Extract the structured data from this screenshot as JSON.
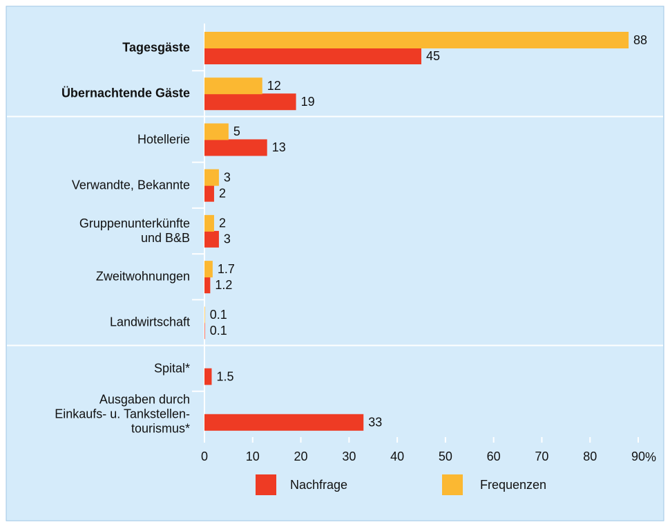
{
  "chart_data": {
    "type": "bar",
    "orientation": "horizontal",
    "categories": [
      "Tagesgäste",
      "Übernachtende Gäste",
      "Hotellerie",
      "Verwandte, Bekannte",
      "Gruppenunterkünfte\nund B&B",
      "Zweitwohnungen",
      "Landwirtschaft",
      "Spital*",
      "Ausgaben durch\nEinkaufs- u. Tankstellen-\ntourismus*"
    ],
    "series": [
      {
        "name": "Nachfrage",
        "color": "#ee3b24",
        "values": [
          45,
          19,
          13,
          2,
          3,
          1.2,
          0.1,
          1.5,
          33
        ]
      },
      {
        "name": "Frequenzen",
        "color": "#fbb832",
        "values": [
          88,
          12,
          5,
          3,
          2,
          1.7,
          0.1,
          null,
          null
        ]
      }
    ],
    "xlim": [
      0,
      90
    ],
    "xticks": [
      0,
      10,
      20,
      30,
      40,
      50,
      60,
      70,
      80,
      90
    ],
    "xlabel": "%"
  }
}
